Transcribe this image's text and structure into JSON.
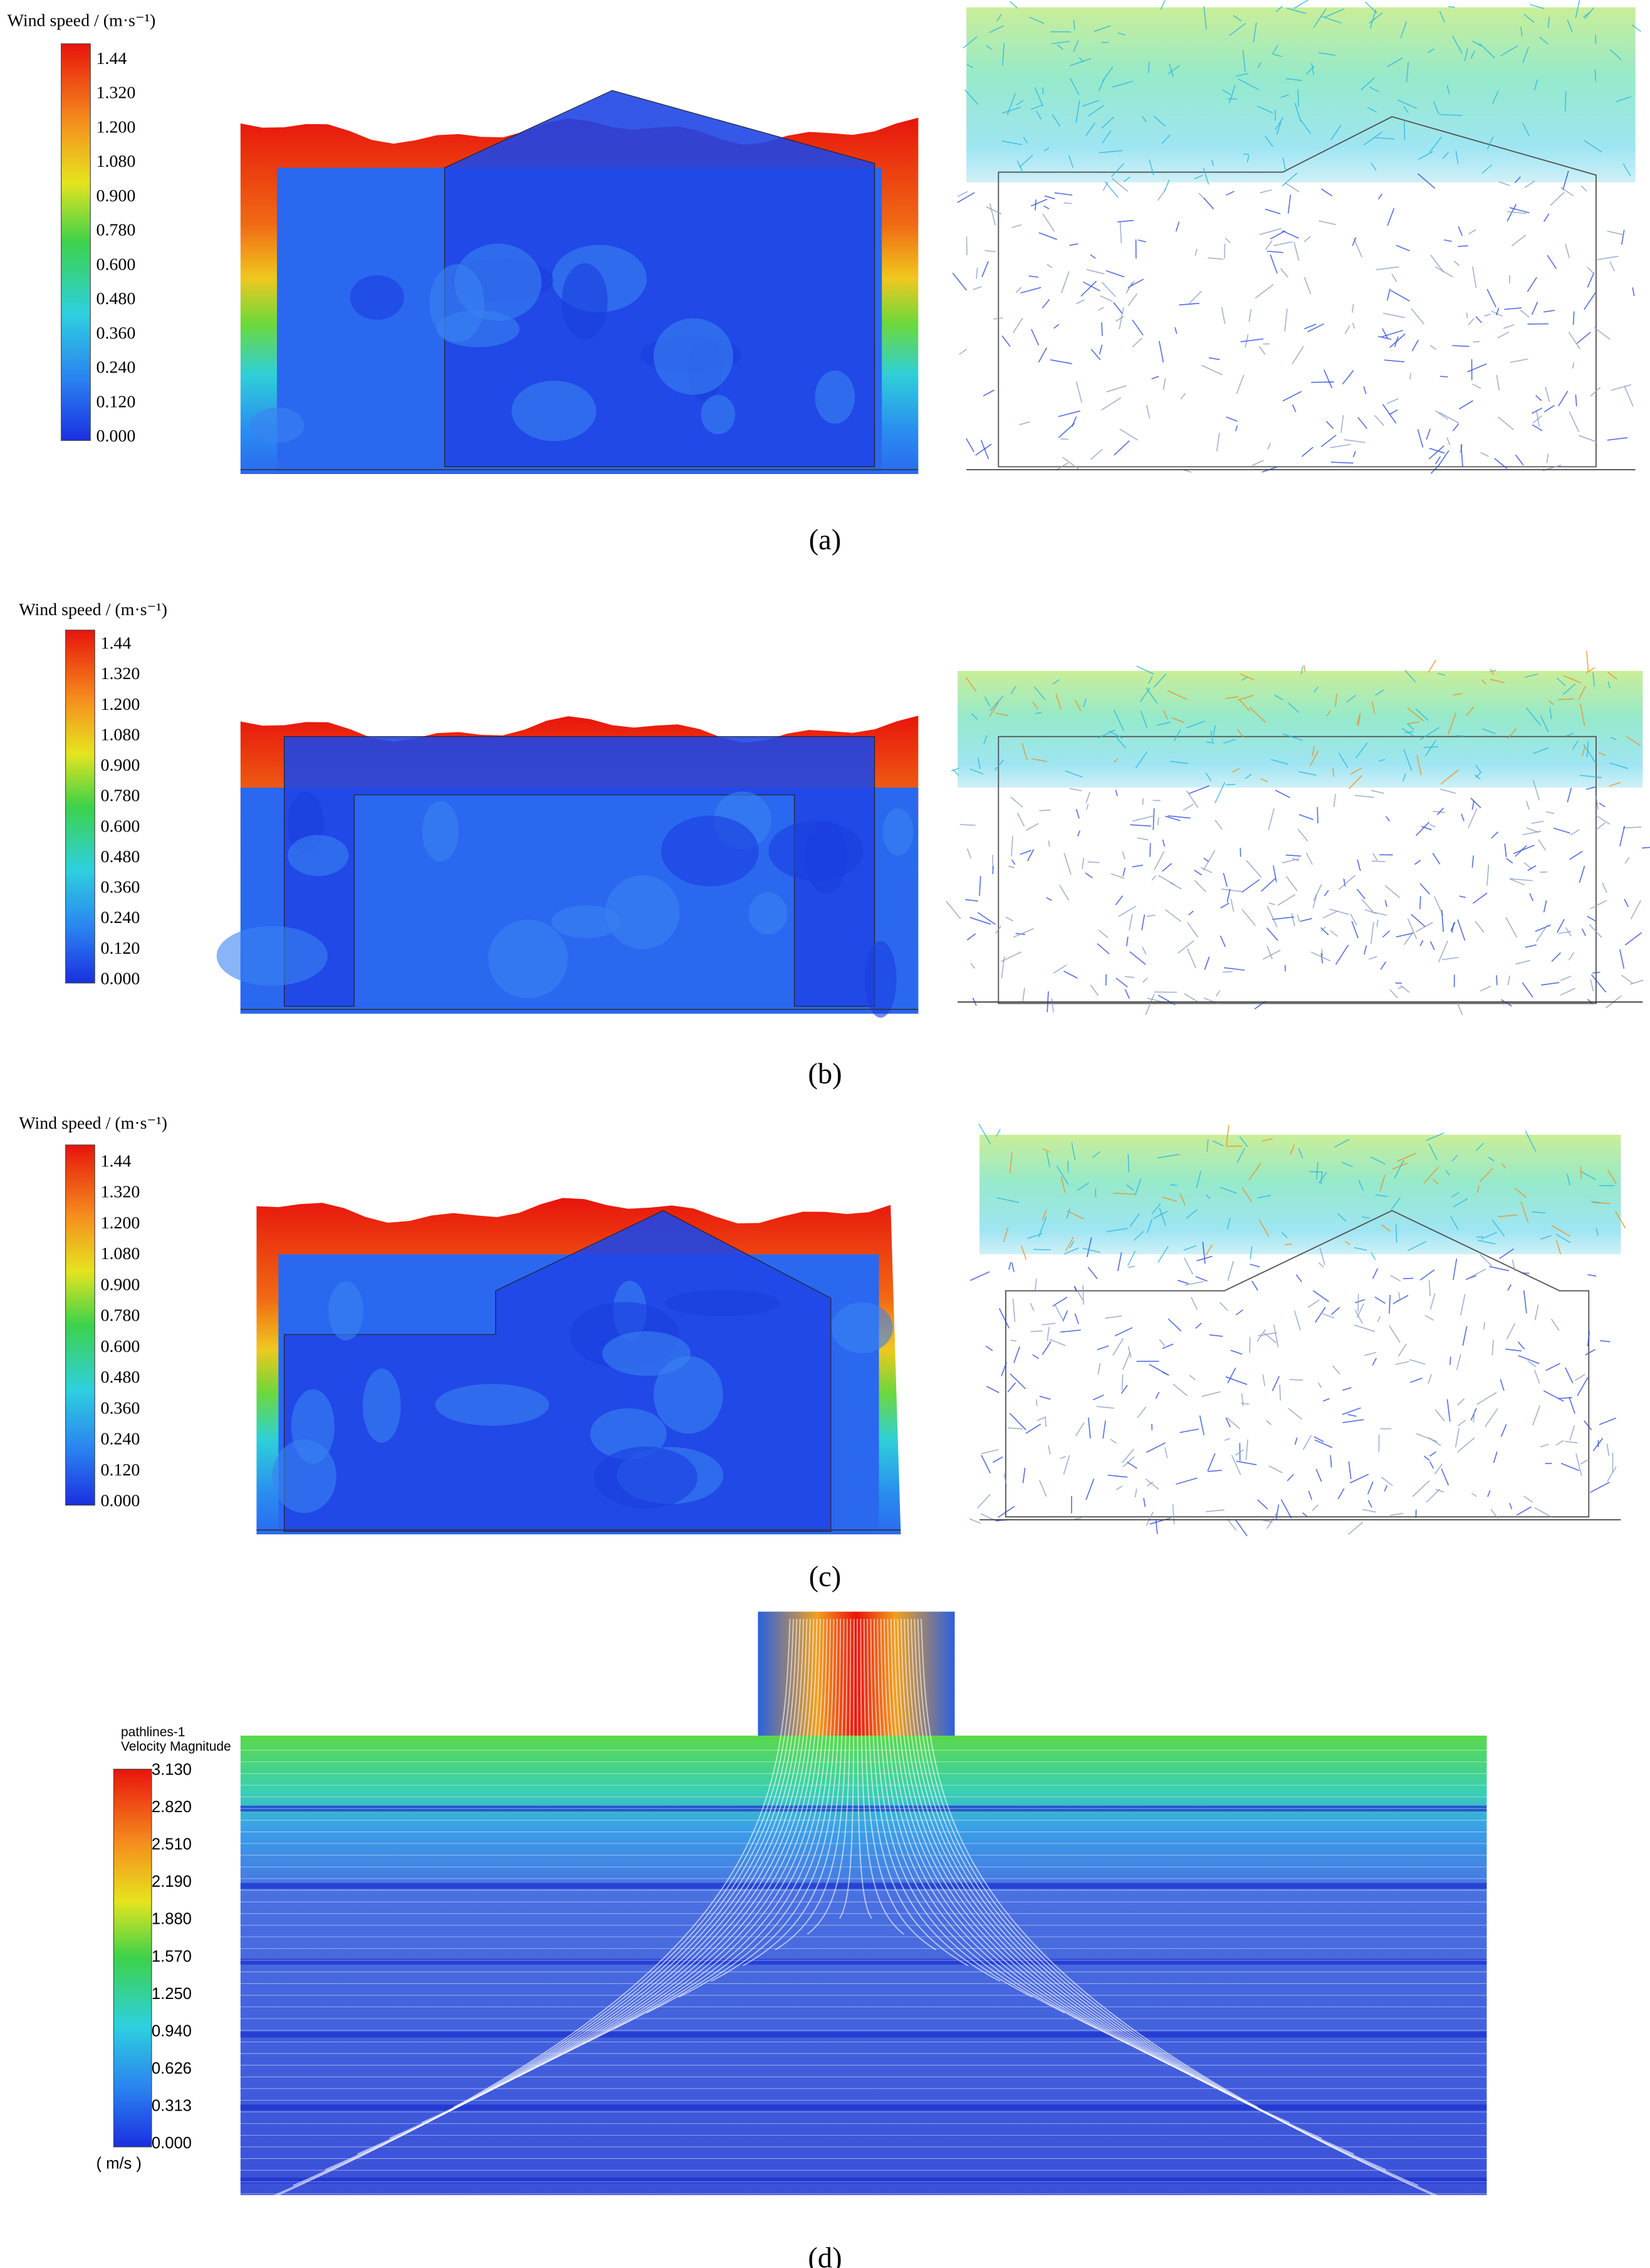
{
  "panels": [
    {
      "label": "(a)",
      "legend": {
        "title": "Wind speed / (m·s⁻¹)",
        "ticks": [
          "1.44",
          "1.320",
          "1.200",
          "1.080",
          "0.900",
          "0.780",
          "0.600",
          "0.480",
          "0.360",
          "0.240",
          "0.120",
          "0.000"
        ]
      }
    },
    {
      "label": "(b)",
      "legend": {
        "title": "Wind speed / (m·s⁻¹)",
        "ticks": [
          "1.44",
          "1.320",
          "1.200",
          "1.080",
          "0.900",
          "0.780",
          "0.600",
          "0.480",
          "0.360",
          "0.240",
          "0.120",
          "0.000"
        ]
      }
    },
    {
      "label": "(c)",
      "legend": {
        "title": "Wind speed / (m·s⁻¹)",
        "ticks": [
          "1.44",
          "1.320",
          "1.200",
          "1.080",
          "0.900",
          "0.780",
          "0.600",
          "0.480",
          "0.360",
          "0.240",
          "0.120",
          "0.000"
        ]
      }
    },
    {
      "label": "(d)",
      "legend": {
        "title_lines": [
          "pathlines-1",
          "Velocity Magnitude"
        ],
        "ticks": [
          "3.130",
          "2.820",
          "2.510",
          "2.190",
          "1.880",
          "1.570",
          "1.250",
          "0.940",
          "0.626",
          "0.313",
          "0.000"
        ],
        "unit": "( m/s )"
      }
    }
  ]
}
